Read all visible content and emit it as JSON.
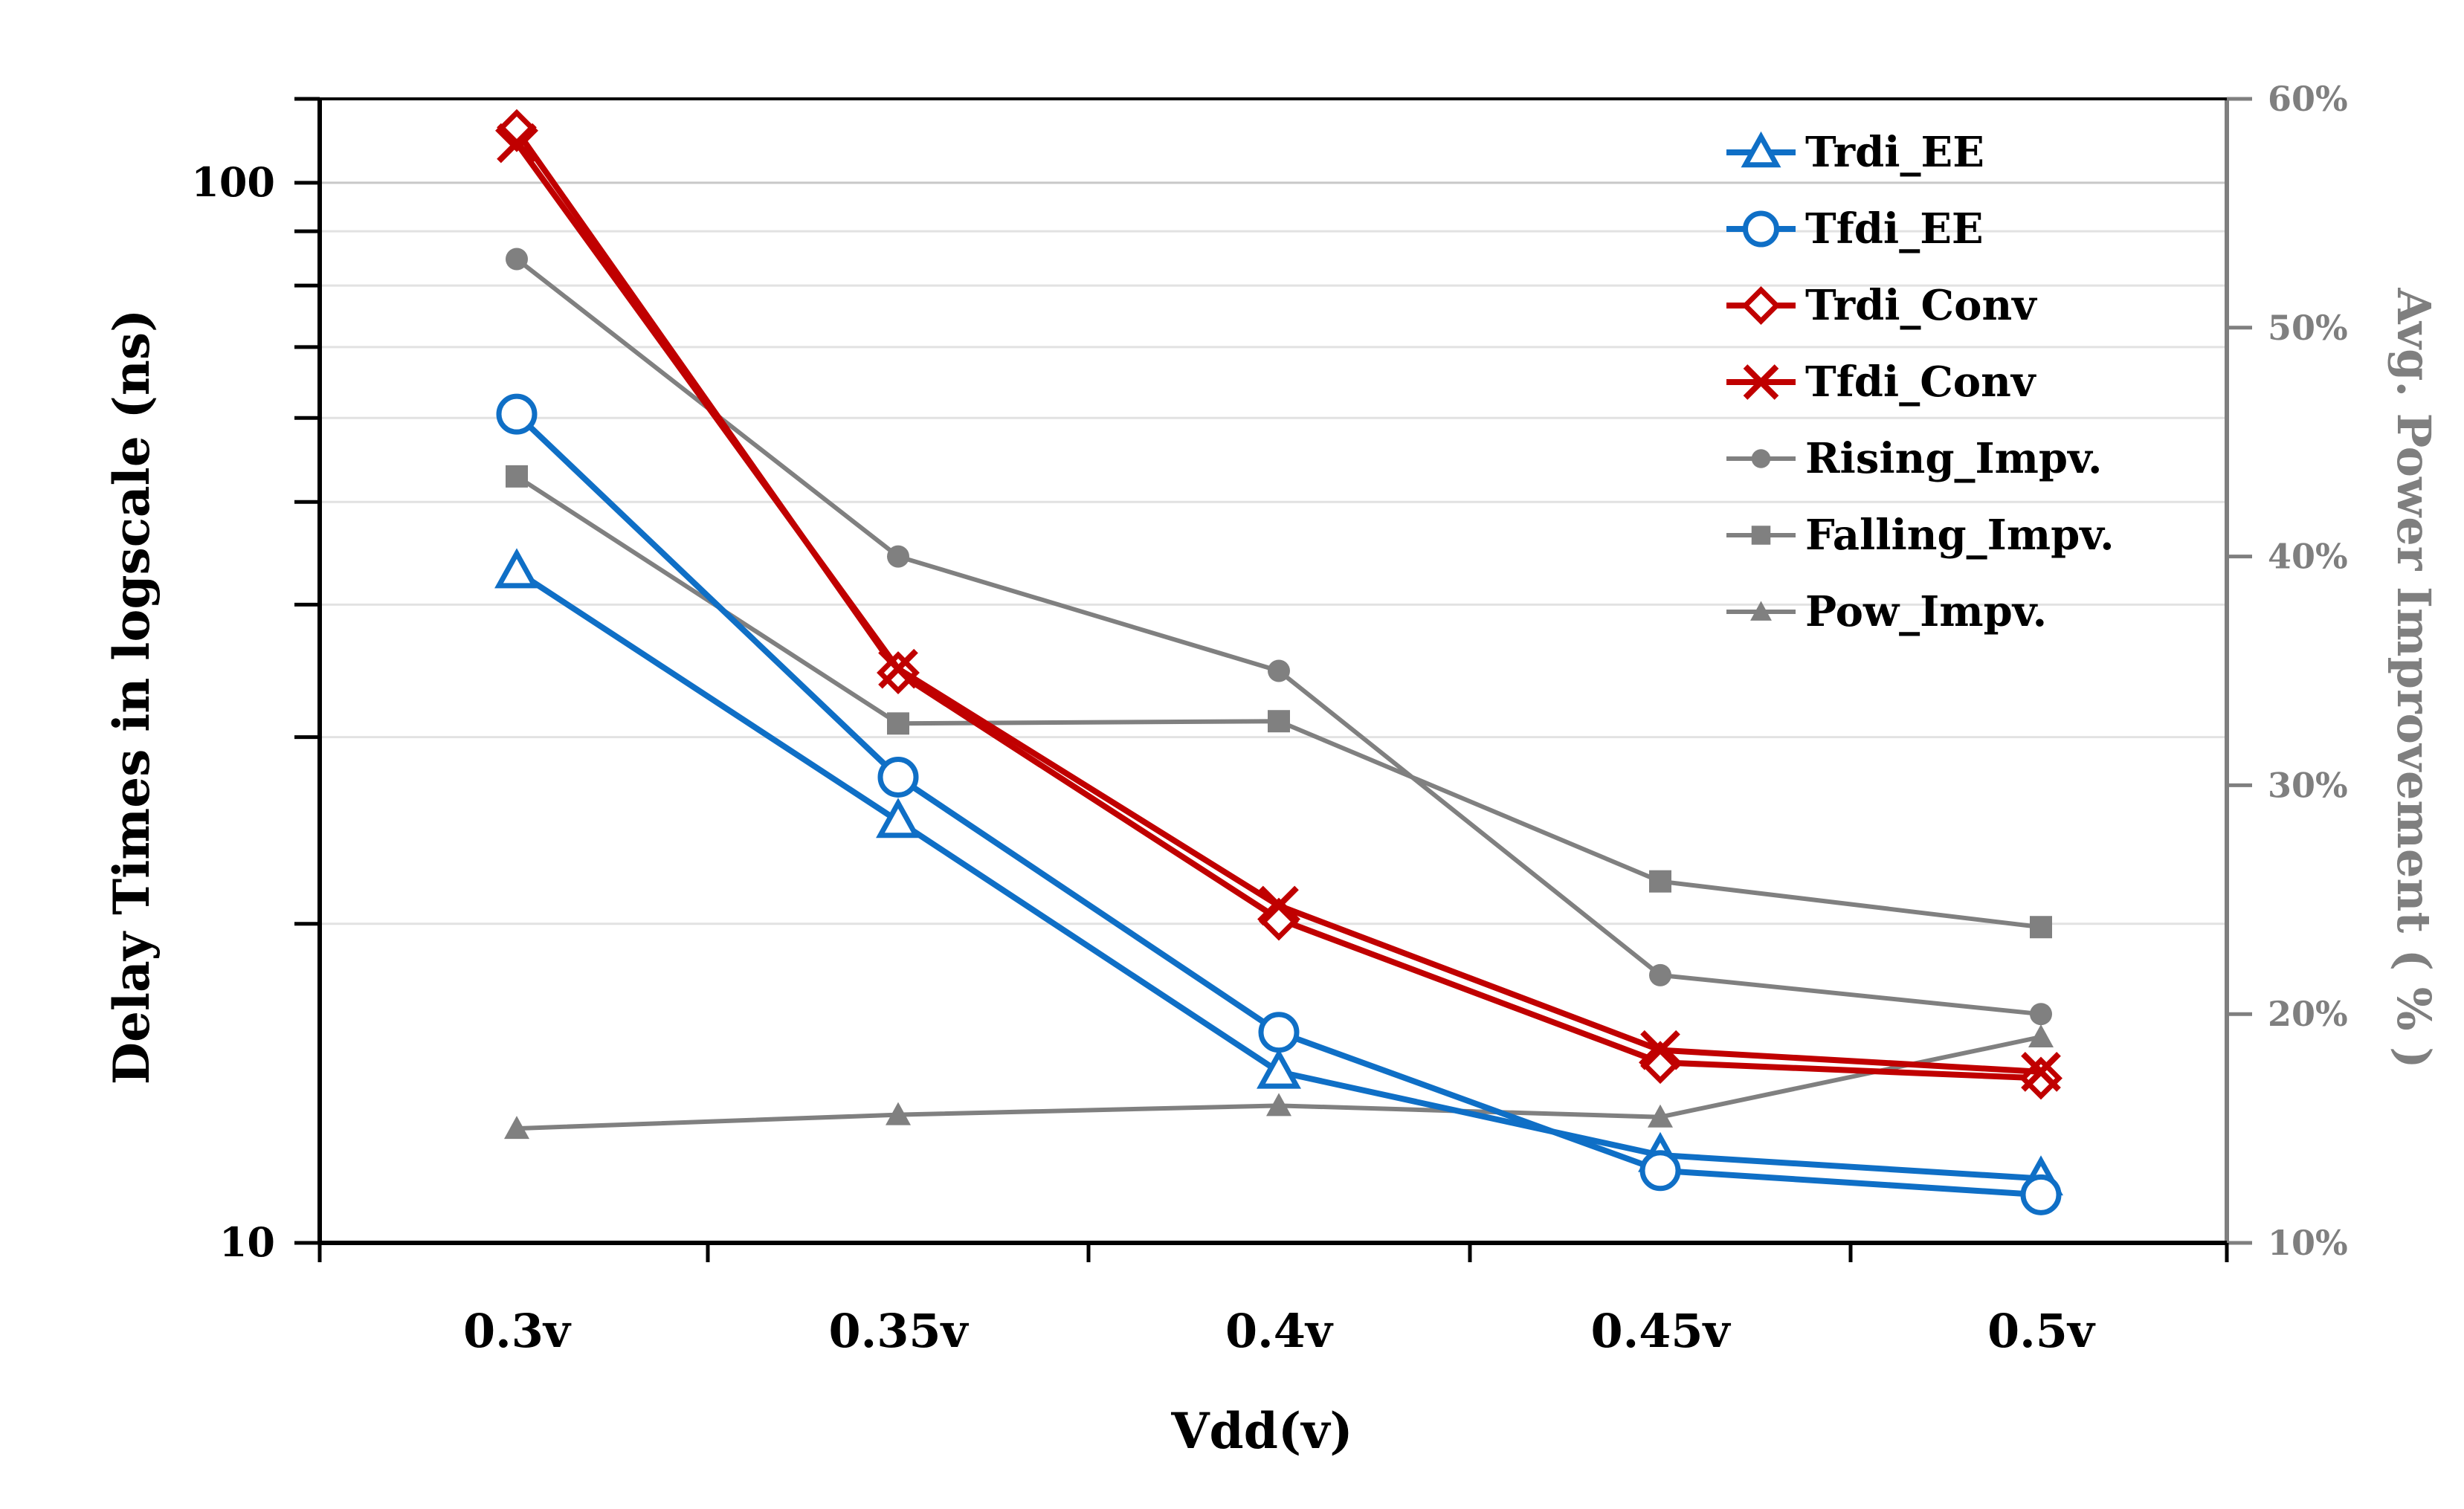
{
  "chart_data": {
    "type": "line",
    "title": "",
    "xlabel": "Vdd(v)",
    "ylabel": "Delay Times in logscale (ns)",
    "y2label": "Avg. Power Improvement ( % )",
    "categories": [
      "0.3v",
      "0.35v",
      "0.4v",
      "0.45v",
      "0.5v"
    ],
    "y_scale": "log",
    "ylim": [
      10,
      120
    ],
    "y_tick_labels": [
      "10",
      "100"
    ],
    "y2lim": [
      10,
      60
    ],
    "y2_ticks": [
      10,
      20,
      30,
      40,
      50,
      60
    ],
    "y2_tick_labels": [
      "10%",
      "20%",
      "30%",
      "40%",
      "50%",
      "60%"
    ],
    "legend_position": "top-right",
    "series": [
      {
        "name": "Trdi_EE",
        "axis": "left",
        "color": "#0f6fc6",
        "marker": "triangle-open",
        "values": [
          43,
          25,
          14.5,
          12.1,
          11.5
        ]
      },
      {
        "name": "Tfdi_EE",
        "axis": "left",
        "color": "#0f6fc6",
        "marker": "circle-open",
        "values": [
          60.5,
          27.5,
          15.8,
          11.7,
          11.1
        ]
      },
      {
        "name": "Trdi_Conv",
        "axis": "left",
        "color": "#c00000",
        "marker": "diamond-open",
        "values": [
          112,
          34.5,
          20.2,
          14.8,
          14.3
        ]
      },
      {
        "name": "Tfdi_Conv",
        "axis": "left",
        "color": "#c00000",
        "marker": "x",
        "values": [
          109,
          34.8,
          20.8,
          15.2,
          14.5
        ]
      },
      {
        "name": "Rising_Impv.",
        "axis": "right",
        "color": "#808080",
        "marker": "circle",
        "values": [
          53,
          40,
          35,
          21.7,
          20
        ]
      },
      {
        "name": "Falling_Impv.",
        "axis": "right",
        "color": "#808080",
        "marker": "square",
        "values": [
          43.5,
          32.7,
          32.8,
          25.8,
          23.8
        ]
      },
      {
        "name": "Pow_Impv.",
        "axis": "right",
        "color": "#808080",
        "marker": "triangle",
        "values": [
          15,
          15.6,
          16,
          15.5,
          19
        ]
      }
    ]
  }
}
